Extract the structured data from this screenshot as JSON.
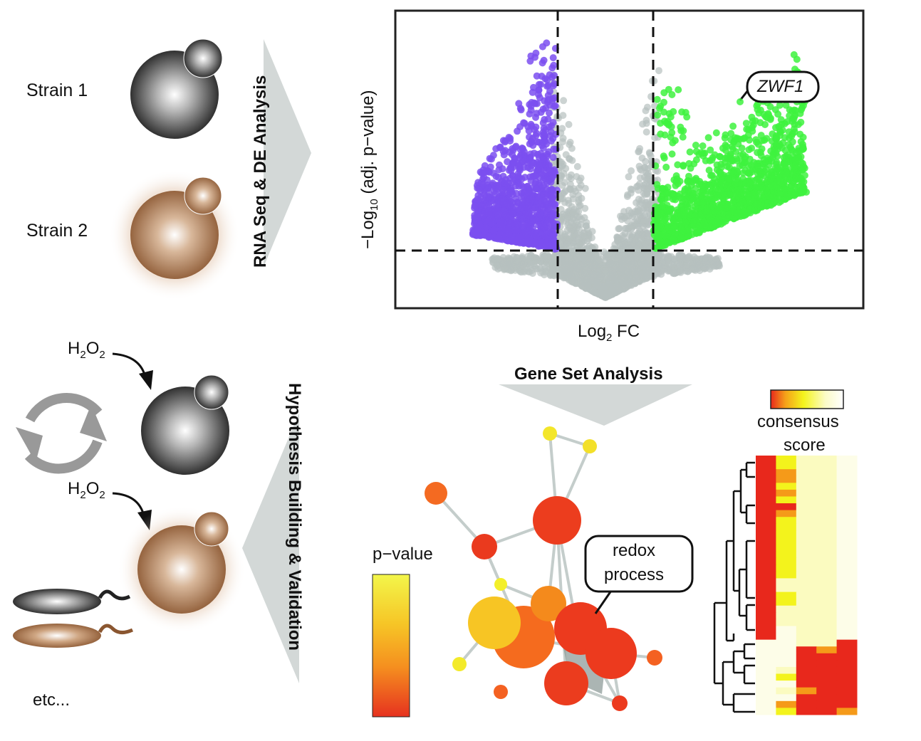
{
  "colors": {
    "down": "#7b4ff0",
    "up": "#3ef23e",
    "ns": "#b7c1bf",
    "strain1": "#3a3a3a",
    "strain2": "#a06a45",
    "arrow_gray": "#d3d8d7"
  },
  "strains": {
    "strain1": "Strain 1",
    "strain2": "Strain 2"
  },
  "steps": {
    "rnaseq": "RNA Seq & DE Analysis",
    "hypothesis": "Hypothesis Building & Validation",
    "gene_set": "Gene Set Analysis"
  },
  "treatment": {
    "h": "H",
    "h_sub": "2",
    "o": "O",
    "o_sub": "2"
  },
  "other": "etc...",
  "chart_data": {
    "type": "scatter",
    "title": "",
    "xlabel_main": "Log",
    "xlabel_sub": "2",
    "xlabel_rest": " FC",
    "ylabel_main": "−Log",
    "ylabel_sub": "10",
    "ylabel_rest": " (adj. p−value)",
    "thresholds": [
      "vertical-left",
      "vertical-right",
      "horizontal"
    ],
    "highlight": "ZWF1",
    "series": [
      {
        "group": "down",
        "color": "#7b4ff0"
      },
      {
        "group": "not-significant",
        "color": "#b7c1bf"
      },
      {
        "group": "up",
        "color": "#3ef23e"
      }
    ]
  },
  "network": {
    "callout": [
      "redox",
      "process"
    ],
    "legend_title": "p−value",
    "legend_colors": [
      "#f0f545",
      "#f6c22a",
      "#f79a1f",
      "#f46a1f",
      "#e63322"
    ]
  },
  "heatmap": {
    "legend_title_1": "consensus",
    "legend_title_2": "score",
    "legend_colors": [
      "#e8281c",
      "#f59a19",
      "#f3f31c",
      "#fbfbc0",
      "#ffffff"
    ],
    "rows": [
      [
        0,
        2,
        3,
        3,
        4
      ],
      [
        0,
        2,
        3,
        3,
        4
      ],
      [
        0,
        1,
        3,
        3,
        4
      ],
      [
        0,
        1,
        3,
        3,
        4
      ],
      [
        0,
        2,
        3,
        3,
        4
      ],
      [
        0,
        1,
        3,
        3,
        4
      ],
      [
        0,
        2,
        3,
        3,
        4
      ],
      [
        0,
        0,
        3,
        3,
        4
      ],
      [
        0,
        1,
        3,
        3,
        4
      ],
      [
        0,
        2,
        3,
        3,
        4
      ],
      [
        0,
        2,
        3,
        3,
        4
      ],
      [
        0,
        2,
        3,
        3,
        4
      ],
      [
        0,
        2,
        3,
        3,
        4
      ],
      [
        0,
        2,
        3,
        3,
        4
      ],
      [
        0,
        2,
        3,
        3,
        4
      ],
      [
        0,
        2,
        3,
        3,
        4
      ],
      [
        0,
        2,
        3,
        3,
        4
      ],
      [
        0,
        2,
        3,
        3,
        4
      ],
      [
        0,
        3,
        3,
        3,
        4
      ],
      [
        0,
        3,
        3,
        3,
        4
      ],
      [
        0,
        2,
        3,
        3,
        4
      ],
      [
        0,
        2,
        3,
        3,
        4
      ],
      [
        0,
        3,
        3,
        3,
        4
      ],
      [
        0,
        3,
        3,
        3,
        4
      ],
      [
        0,
        3,
        3,
        3,
        4
      ],
      [
        0,
        4,
        3,
        3,
        4
      ],
      [
        0,
        4,
        3,
        3,
        4
      ],
      [
        4,
        4,
        3,
        3,
        0
      ],
      [
        4,
        4,
        0,
        1,
        0
      ],
      [
        4,
        4,
        0,
        0,
        0
      ],
      [
        4,
        4,
        0,
        0,
        0
      ],
      [
        4,
        3,
        0,
        0,
        0
      ],
      [
        4,
        2,
        0,
        0,
        0
      ],
      [
        4,
        4,
        0,
        0,
        0
      ],
      [
        4,
        3,
        1,
        0,
        0
      ],
      [
        4,
        4,
        0,
        0,
        0
      ],
      [
        4,
        1,
        0,
        0,
        0
      ],
      [
        4,
        2,
        0,
        0,
        1
      ]
    ]
  }
}
